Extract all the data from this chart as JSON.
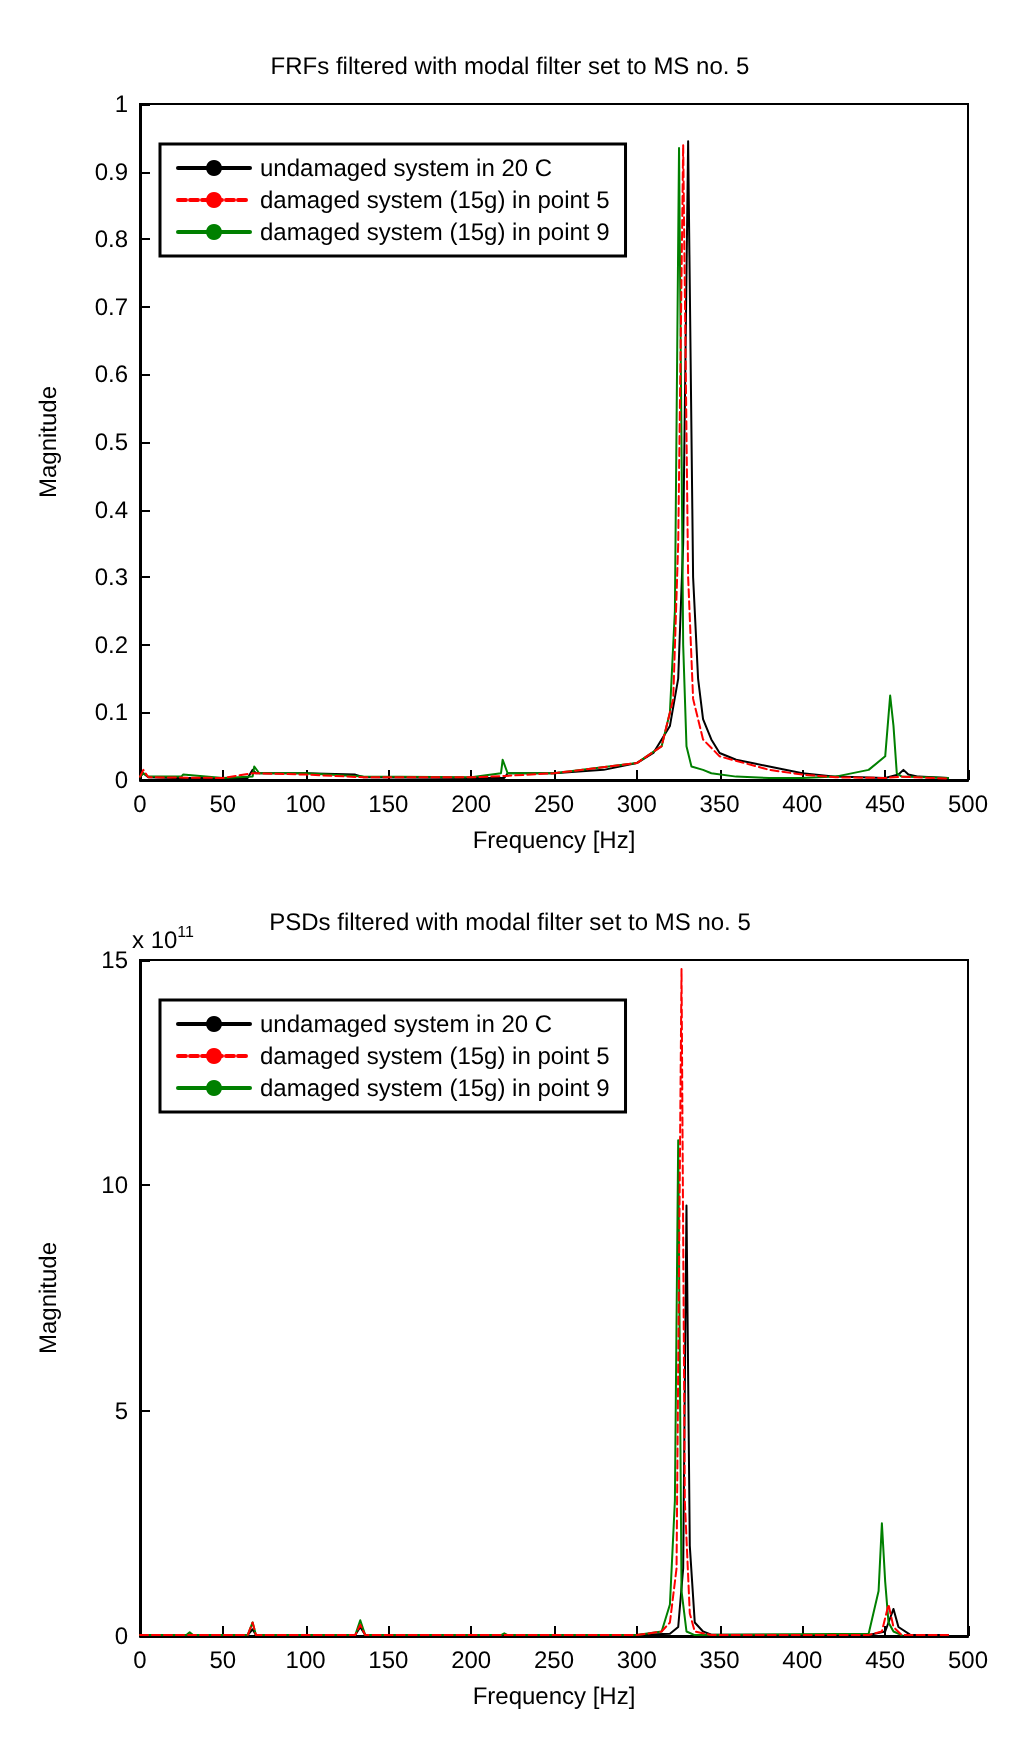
{
  "chart_data": [
    {
      "type": "line",
      "title": "FRFs filtered with modal filter set to MS no. 5",
      "xlabel": "Frequency [Hz]",
      "ylabel": "Magnitude",
      "xlim": [
        0,
        500
      ],
      "xticks": [
        0,
        50,
        100,
        150,
        200,
        250,
        300,
        350,
        400,
        450,
        500
      ],
      "ylim": [
        0,
        1
      ],
      "yticks": [
        0,
        0.1,
        0.2,
        0.3,
        0.4,
        0.5,
        0.6,
        0.7,
        0.8,
        0.9,
        1
      ],
      "grid": false,
      "legend": "top left",
      "series": [
        {
          "name": "undamaged system in 20 C",
          "color": "#000000",
          "line_style": "solid",
          "x": [
            0,
            2,
            5,
            20,
            50,
            65,
            68,
            70,
            100,
            130,
            135,
            200,
            220,
            222,
            250,
            280,
            300,
            310,
            320,
            325,
            328,
            331,
            334,
            337,
            340,
            345,
            350,
            360,
            380,
            400,
            420,
            450,
            458,
            461,
            464,
            470,
            488
          ],
          "values": [
            0.005,
            0.01,
            0.004,
            0.003,
            0.003,
            0.003,
            0.015,
            0.01,
            0.01,
            0.008,
            0.004,
            0.003,
            0.003,
            0.01,
            0.01,
            0.015,
            0.025,
            0.04,
            0.08,
            0.15,
            0.35,
            0.945,
            0.3,
            0.15,
            0.09,
            0.06,
            0.04,
            0.03,
            0.02,
            0.01,
            0.005,
            0.003,
            0.008,
            0.015,
            0.008,
            0.005,
            0.003
          ]
        },
        {
          "name": "damaged system (15g) in point 5",
          "color": "#ff0000",
          "line_style": "dashed",
          "x": [
            0,
            2,
            5,
            50,
            68,
            70,
            100,
            135,
            200,
            220,
            250,
            300,
            315,
            322,
            325,
            328,
            331,
            334,
            340,
            350,
            380,
            400,
            420,
            450,
            460,
            488
          ],
          "values": [
            0.005,
            0.015,
            0.004,
            0.003,
            0.01,
            0.01,
            0.008,
            0.004,
            0.004,
            0.006,
            0.01,
            0.025,
            0.05,
            0.12,
            0.35,
            0.94,
            0.3,
            0.12,
            0.06,
            0.035,
            0.015,
            0.008,
            0.004,
            0.003,
            0.005,
            0.002
          ]
        },
        {
          "name": "damaged system (15g) in point 9",
          "color": "#008000",
          "line_style": "solid",
          "x": [
            0,
            2,
            5,
            25,
            26,
            50,
            68,
            69,
            72,
            100,
            135,
            200,
            218,
            219,
            222,
            250,
            300,
            315,
            320,
            323,
            325.5,
            328,
            330,
            333,
            340,
            345,
            360,
            380,
            400,
            420,
            440,
            450,
            453,
            455,
            457,
            460,
            488
          ],
          "values": [
            0.005,
            0.01,
            0.005,
            0.005,
            0.008,
            0.003,
            0.005,
            0.02,
            0.01,
            0.01,
            0.005,
            0.004,
            0.01,
            0.03,
            0.01,
            0.01,
            0.025,
            0.05,
            0.1,
            0.25,
            0.935,
            0.2,
            0.05,
            0.02,
            0.015,
            0.01,
            0.005,
            0.003,
            0.003,
            0.005,
            0.015,
            0.035,
            0.125,
            0.08,
            0.01,
            0.005,
            0.003
          ]
        }
      ]
    },
    {
      "type": "line",
      "title": "PSDs filtered with modal filter set to MS no. 5",
      "xlabel": "Frequency [Hz]",
      "ylabel": "Magnitude",
      "annotations": [
        "x 10$^{11}$"
      ],
      "xlim": [
        0,
        500
      ],
      "xticks": [
        0,
        50,
        100,
        150,
        200,
        250,
        300,
        350,
        400,
        450,
        500
      ],
      "ylim": [
        0,
        15
      ],
      "yticks": [
        0,
        5,
        10,
        15
      ],
      "grid": false,
      "legend": "top left",
      "series": [
        {
          "name": "undamaged system in 20 C",
          "color": "#000000",
          "line_style": "solid",
          "x": [
            0,
            65,
            68,
            70,
            130,
            133,
            136,
            300,
            320,
            325,
            328,
            330,
            332,
            335,
            340,
            345,
            440,
            450,
            453,
            455,
            458,
            465,
            488
          ],
          "values": [
            0.02,
            0.02,
            0.15,
            0.02,
            0.02,
            0.2,
            0.02,
            0.02,
            0.05,
            0.2,
            1.5,
            9.55,
            2,
            0.3,
            0.1,
            0.03,
            0.02,
            0.1,
            0.4,
            0.6,
            0.2,
            0.03,
            0.02
          ]
        },
        {
          "name": "damaged system (15g) in point 5",
          "color": "#ff0000",
          "line_style": "dashed",
          "x": [
            0,
            65,
            68,
            70,
            130,
            133,
            136,
            300,
            315,
            320,
            324,
            327,
            329,
            332,
            335,
            345,
            440,
            448,
            452,
            455,
            460,
            488
          ],
          "values": [
            0.02,
            0.02,
            0.3,
            0.02,
            0.02,
            0.25,
            0.02,
            0.02,
            0.1,
            0.3,
            1.5,
            14.8,
            3,
            0.5,
            0.1,
            0.02,
            0.02,
            0.1,
            0.7,
            0.2,
            0.02,
            0.02
          ]
        },
        {
          "name": "damaged system (15g) in point 9",
          "color": "#008000",
          "line_style": "solid",
          "x": [
            0,
            28,
            30,
            32,
            65,
            68,
            70,
            130,
            133,
            136,
            218,
            220,
            222,
            300,
            315,
            320,
            323,
            325,
            327,
            330,
            335,
            440,
            446,
            448,
            450,
            452,
            455,
            460
          ],
          "values": [
            0.02,
            0.02,
            0.08,
            0.02,
            0.02,
            0.3,
            0.02,
            0.02,
            0.35,
            0.02,
            0.02,
            0.06,
            0.02,
            0.02,
            0.1,
            0.7,
            3,
            11,
            1,
            0.1,
            0.02,
            0.05,
            1,
            2.5,
            1.2,
            0.3,
            0.1,
            0.02
          ]
        }
      ]
    }
  ]
}
